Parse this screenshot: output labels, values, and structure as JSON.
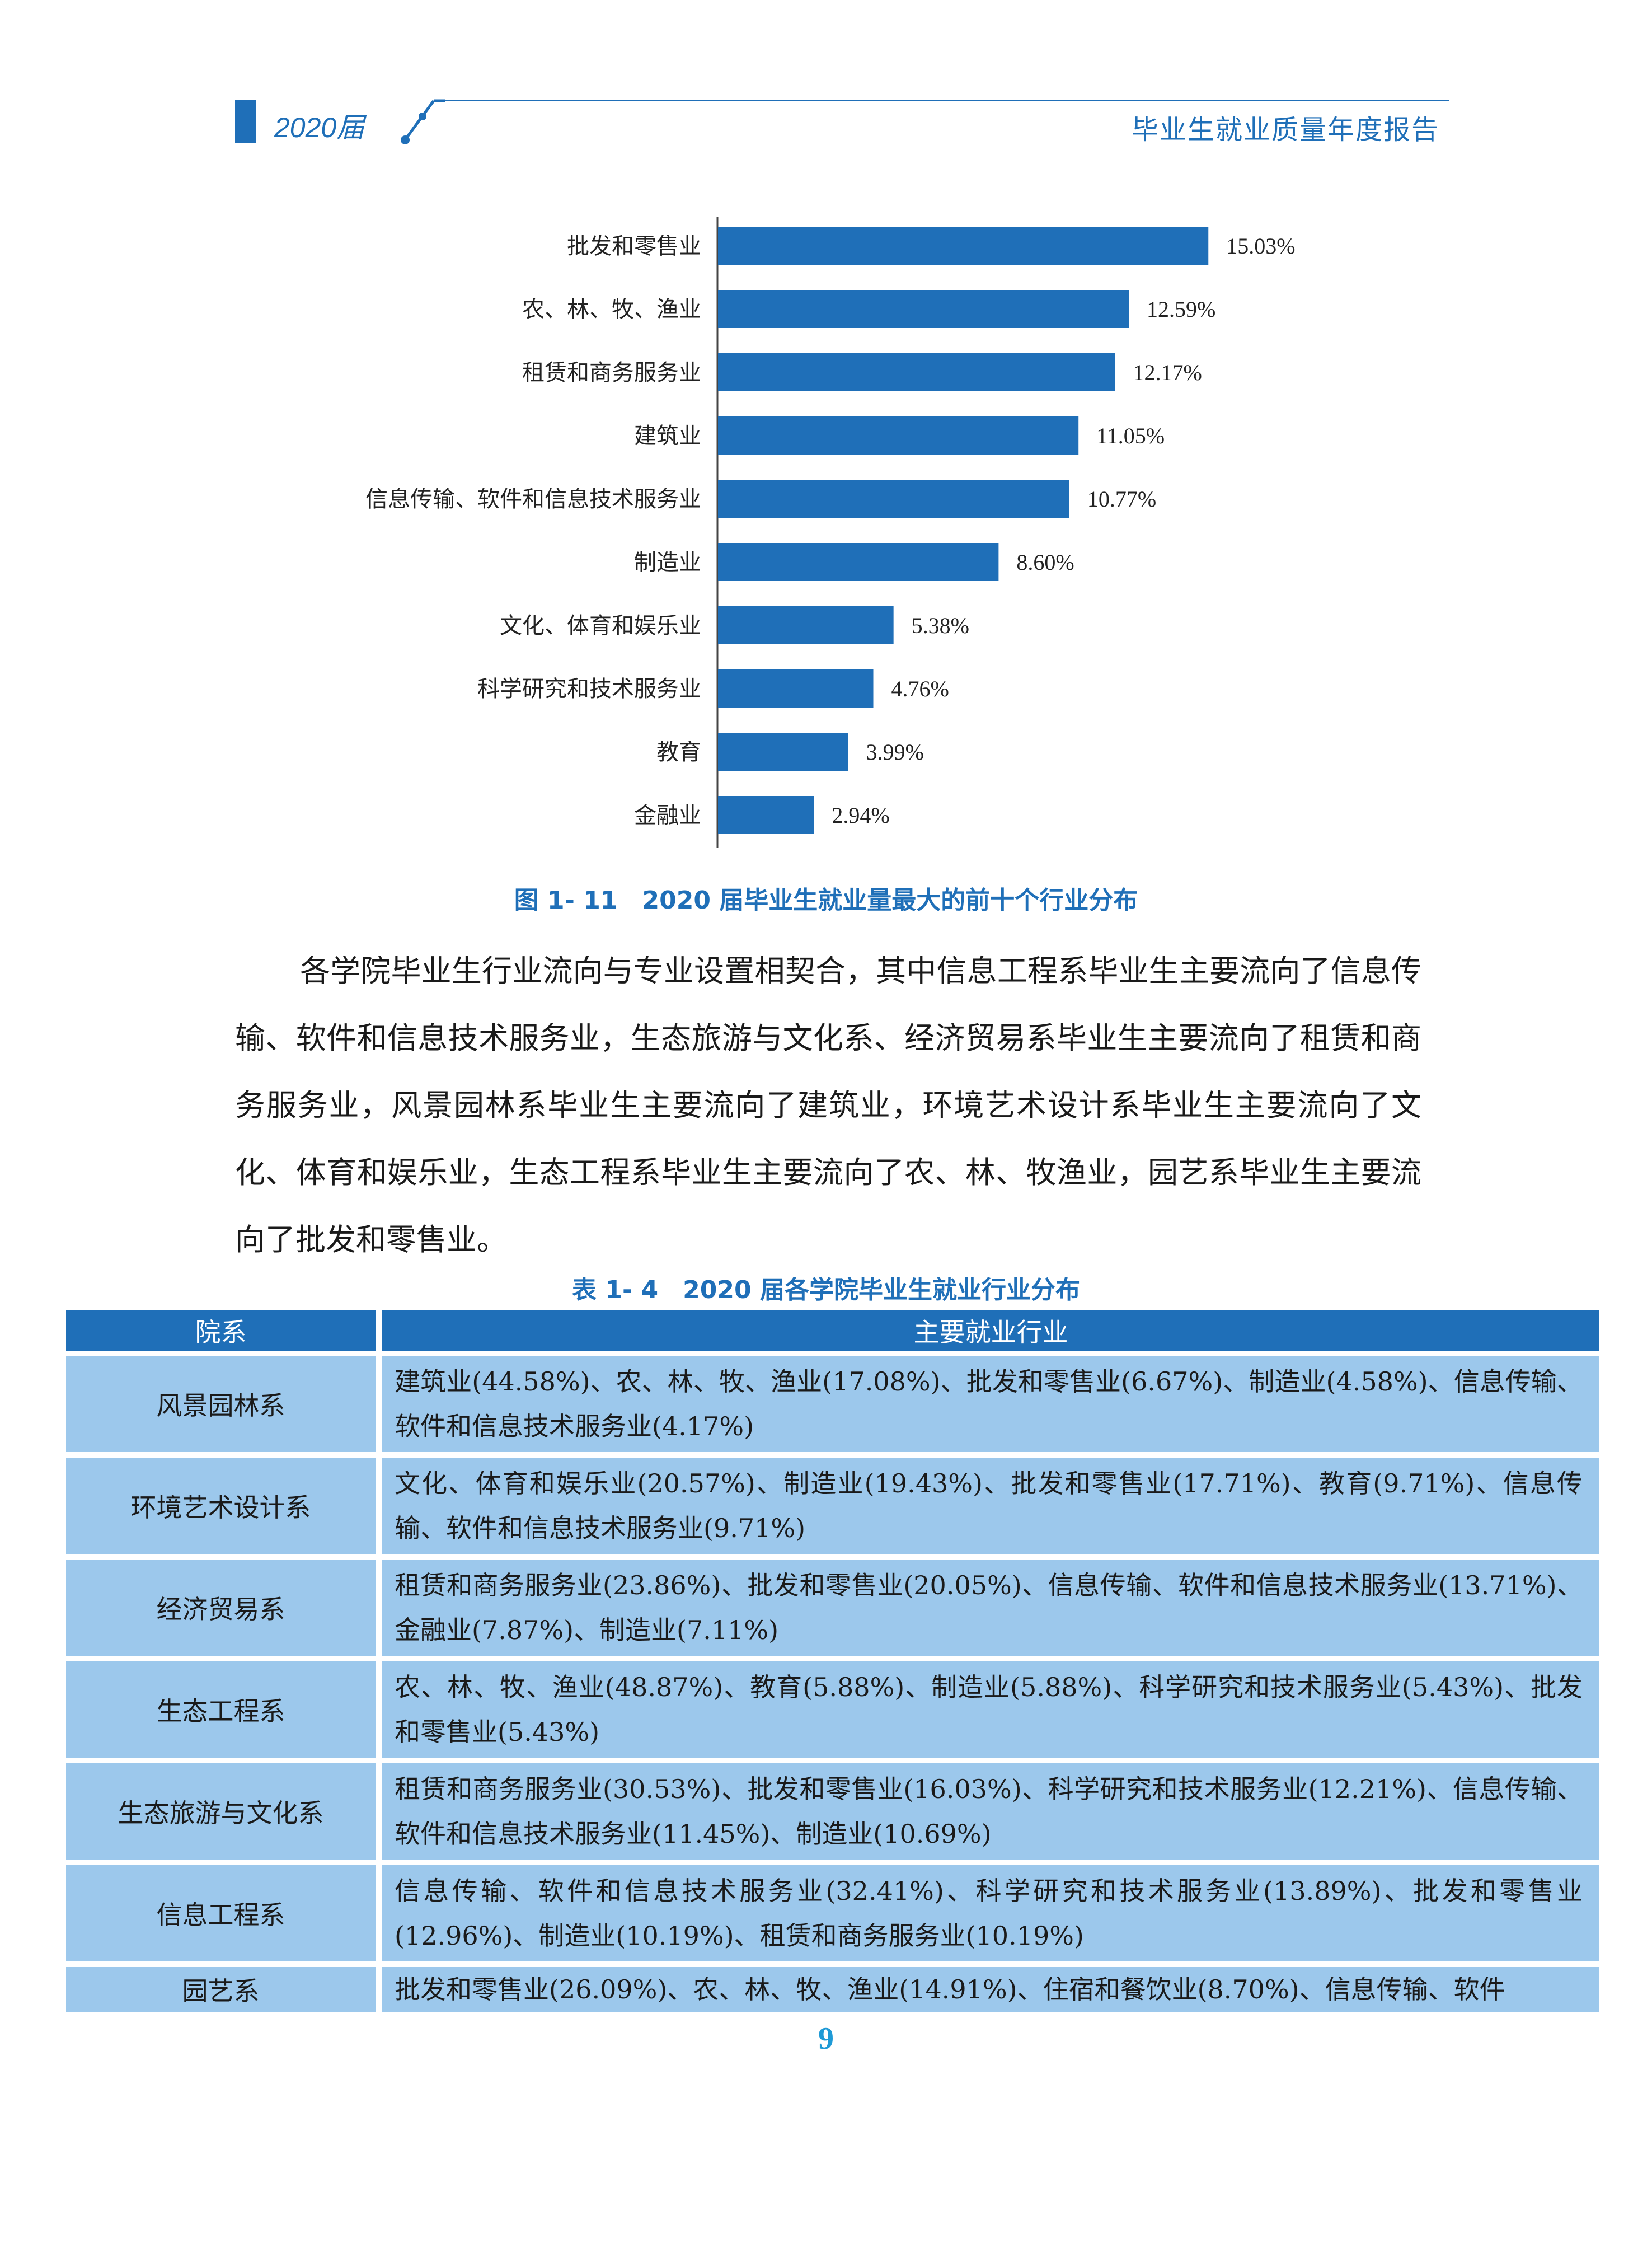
{
  "header": {
    "year_label": "2020届",
    "report_title": "毕业生就业质量年度报告"
  },
  "chart_data": {
    "type": "bar",
    "orientation": "horizontal",
    "categories": [
      "批发和零售业",
      "农、林、牧、渔业",
      "租赁和商务服务业",
      "建筑业",
      "信息传输、软件和信息技术服务业",
      "制造业",
      "文化、体育和娱乐业",
      "科学研究和技术服务业",
      "教育",
      "金融业"
    ],
    "values": [
      15.03,
      12.59,
      12.17,
      11.05,
      10.77,
      8.6,
      5.38,
      4.76,
      3.99,
      2.94
    ],
    "value_labels": [
      "15.03%",
      "12.59%",
      "12.17%",
      "11.05%",
      "10.77%",
      "8.60%",
      "5.38%",
      "4.76%",
      "3.99%",
      "2.94%"
    ],
    "unit": "%",
    "xlim": [
      0,
      16
    ],
    "color": "#1f6fb8",
    "grid": false,
    "title": "",
    "xlabel": "",
    "ylabel": ""
  },
  "figure_caption": "图 1- 11　2020 届毕业生就业量最大的前十个行业分布",
  "paragraph": "各学院毕业生行业流向与专业设置相契合，其中信息工程系毕业生主要流向了信息传输、软件和信息技术服务业，生态旅游与文化系、经济贸易系毕业生主要流向了租赁和商务服务业，风景园林系毕业生主要流向了建筑业，环境艺术设计系毕业生主要流向了文化、体育和娱乐业，生态工程系毕业生主要流向了农、林、牧渔业，园艺系毕业生主要流向了批发和零售业。",
  "table_caption": "表 1- 4　2020 届各学院毕业生就业行业分布",
  "table": {
    "headers": [
      "院系",
      "主要就业行业"
    ],
    "rows": [
      {
        "dept": "风景园林系",
        "industries": "建筑业(44.58%)、农、林、牧、渔业(17.08%)、批发和零售业(6.67%)、制造业(4.58%)、信息传输、软件和信息技术服务业(4.17%)"
      },
      {
        "dept": "环境艺术设计系",
        "industries": "文化、体育和娱乐业(20.57%)、制造业(19.43%)、批发和零售业(17.71%)、教育(9.71%)、信息传输、软件和信息技术服务业(9.71%)"
      },
      {
        "dept": "经济贸易系",
        "industries": "租赁和商务服务业(23.86%)、批发和零售业(20.05%)、信息传输、软件和信息技术服务业(13.71%)、金融业(7.87%)、制造业(7.11%)"
      },
      {
        "dept": "生态工程系",
        "industries": "农、林、牧、渔业(48.87%)、教育(5.88%)、制造业(5.88%)、科学研究和技术服务业(5.43%)、批发和零售业(5.43%)"
      },
      {
        "dept": "生态旅游与文化系",
        "industries": "租赁和商务服务业(30.53%)、批发和零售业(16.03%)、科学研究和技术服务业(12.21%)、信息传输、软件和信息技术服务业(11.45%)、制造业(10.69%)"
      },
      {
        "dept": "信息工程系",
        "industries": "信息传输、软件和信息技术服务业(32.41%)、科学研究和技术服务业(13.89%)、批发和零售业(12.96%)、制造业(10.19%)、租赁和商务服务业(10.19%)"
      },
      {
        "dept": "园艺系",
        "industries": "批发和零售业(26.09%)、农、林、牧、渔业(14.91%)、住宿和餐饮业(8.70%)、信息传输、软件"
      }
    ]
  },
  "page_number": "9"
}
